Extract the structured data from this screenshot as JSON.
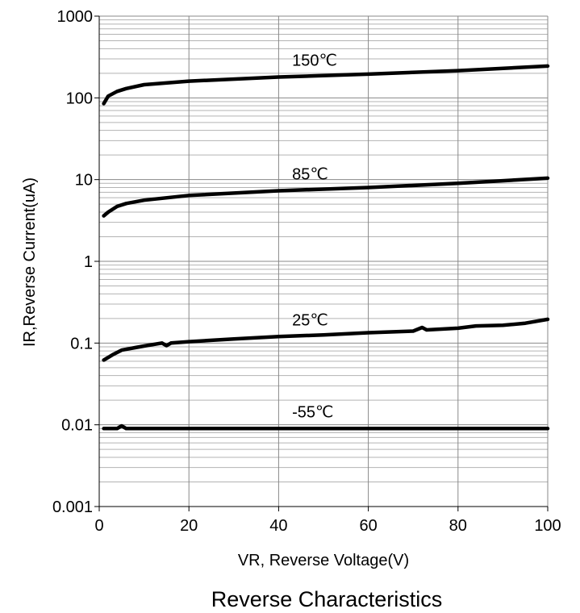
{
  "chart_data": {
    "type": "line",
    "title": "Reverse Characteristics",
    "xlabel": "VR, Reverse Voltage(V)",
    "ylabel": "IR,Reverse Current(uA)",
    "xlim": [
      0,
      100
    ],
    "ylim": [
      0.001,
      1000
    ],
    "y_scale": "log",
    "grid": true,
    "x_ticks": [
      0,
      20,
      40,
      60,
      80,
      100
    ],
    "x_tick_labels": [
      "0",
      "20",
      "40",
      "60",
      "80",
      "100"
    ],
    "y_ticks": [
      0.001,
      0.01,
      0.1,
      1,
      10,
      100,
      1000
    ],
    "y_tick_labels": [
      "0.001",
      "0.01",
      "0.1",
      "1",
      "10",
      "100",
      "1000"
    ],
    "series": [
      {
        "name": "150℃",
        "points": [
          [
            1,
            85
          ],
          [
            2,
            105
          ],
          [
            4,
            120
          ],
          [
            6,
            130
          ],
          [
            10,
            145
          ],
          [
            20,
            160
          ],
          [
            40,
            180
          ],
          [
            60,
            195
          ],
          [
            80,
            215
          ],
          [
            100,
            245
          ]
        ]
      },
      {
        "name": "85℃",
        "points": [
          [
            1,
            3.6
          ],
          [
            2,
            4.0
          ],
          [
            4,
            4.7
          ],
          [
            6,
            5.1
          ],
          [
            10,
            5.6
          ],
          [
            20,
            6.4
          ],
          [
            40,
            7.3
          ],
          [
            60,
            8.0
          ],
          [
            80,
            9.0
          ],
          [
            100,
            10.4
          ]
        ]
      },
      {
        "name": "25℃",
        "points": [
          [
            1,
            0.062
          ],
          [
            3,
            0.072
          ],
          [
            5,
            0.082
          ],
          [
            8,
            0.088
          ],
          [
            10,
            0.092
          ],
          [
            14,
            0.1
          ],
          [
            15,
            0.093
          ],
          [
            16,
            0.1
          ],
          [
            20,
            0.104
          ],
          [
            30,
            0.112
          ],
          [
            40,
            0.12
          ],
          [
            50,
            0.126
          ],
          [
            60,
            0.134
          ],
          [
            70,
            0.14
          ],
          [
            72,
            0.155
          ],
          [
            73,
            0.145
          ],
          [
            80,
            0.152
          ],
          [
            84,
            0.162
          ],
          [
            90,
            0.165
          ],
          [
            95,
            0.175
          ],
          [
            100,
            0.195
          ]
        ]
      },
      {
        "name": "-55℃",
        "points": [
          [
            1,
            0.009
          ],
          [
            4,
            0.009
          ],
          [
            5,
            0.0097
          ],
          [
            6,
            0.009
          ],
          [
            10,
            0.009
          ],
          [
            100,
            0.009
          ]
        ]
      }
    ]
  }
}
